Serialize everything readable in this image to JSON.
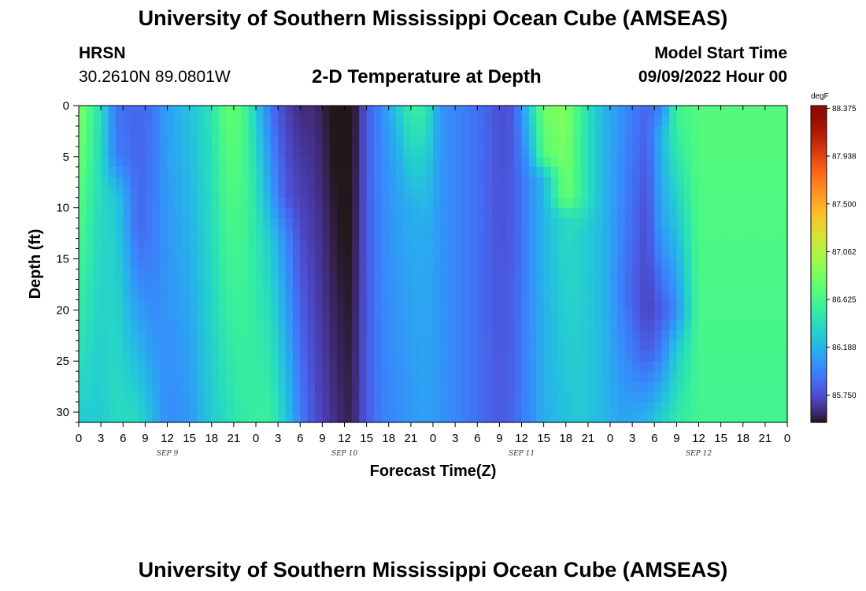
{
  "header": {
    "main_title": "University of Southern Mississippi Ocean Cube (AMSEAS)",
    "station_name": "HRSN",
    "station_coords": "30.2610N  89.0801W",
    "start_label": "Model Start Time",
    "start_value": "09/09/2022 Hour 00"
  },
  "footer": {
    "repeated_title": "University of Southern Mississippi Ocean Cube (AMSEAS)"
  },
  "chart_data": {
    "type": "heatmap",
    "title": "2-D Temperature at Depth",
    "xlabel": "Forecast Time(Z)",
    "ylabel": "Depth (ft)",
    "x_range_hours": [
      0,
      96
    ],
    "x_step_hours": 3,
    "y_range": [
      0,
      31
    ],
    "y_reversed": true,
    "y_ticks": [
      0,
      5,
      10,
      15,
      20,
      25,
      30
    ],
    "x_tick_labels": [
      "0",
      "3",
      "6",
      "9",
      "12",
      "15",
      "18",
      "21",
      "0",
      "3",
      "6",
      "9",
      "12",
      "15",
      "18",
      "21",
      "0",
      "3",
      "6",
      "9",
      "12",
      "15",
      "18",
      "21",
      "0",
      "3",
      "6",
      "9",
      "12",
      "15",
      "18",
      "21",
      "0"
    ],
    "day_labels": [
      "SEP 9",
      "SEP 10",
      "SEP 11",
      "SEP 12"
    ],
    "colorbar": {
      "unit": "degF",
      "min": 85.5,
      "max": 88.4,
      "tick_labels": [
        "88.375",
        "87.938",
        "87.500",
        "87.062",
        "86.625",
        "86.188",
        "85.750"
      ],
      "tick_values": [
        88.375,
        87.938,
        87.5,
        87.062,
        86.625,
        86.188,
        85.75
      ],
      "colormap": "turbo"
    },
    "depth_profiles": [
      {
        "hour": 0,
        "values": [
          [
            0,
            86.9
          ],
          [
            31,
            86.3
          ]
        ]
      },
      {
        "hour": 3,
        "values": [
          [
            0,
            86.4
          ],
          [
            31,
            86.3
          ]
        ]
      },
      {
        "hour": 5,
        "values": [
          [
            0,
            85.9
          ],
          [
            5,
            85.95
          ],
          [
            9,
            86.3
          ],
          [
            16,
            86.35
          ],
          [
            31,
            86.4
          ]
        ]
      },
      {
        "hour": 8,
        "values": [
          [
            0,
            85.85
          ],
          [
            12,
            85.85
          ],
          [
            17,
            86.0
          ],
          [
            31,
            86.4
          ]
        ]
      },
      {
        "hour": 10,
        "values": [
          [
            0,
            85.9
          ],
          [
            15,
            85.95
          ],
          [
            20,
            86.0
          ],
          [
            31,
            86.2
          ]
        ]
      },
      {
        "hour": 12,
        "values": [
          [
            0,
            86.1
          ],
          [
            31,
            86.0
          ]
        ]
      },
      {
        "hour": 15,
        "values": [
          [
            0,
            86.25
          ],
          [
            31,
            86.05
          ]
        ]
      },
      {
        "hour": 18,
        "values": [
          [
            0,
            86.45
          ],
          [
            31,
            86.3
          ]
        ]
      },
      {
        "hour": 20,
        "values": [
          [
            0,
            86.75
          ],
          [
            31,
            86.4
          ]
        ]
      },
      {
        "hour": 22,
        "values": [
          [
            0,
            86.7
          ],
          [
            31,
            86.5
          ]
        ]
      },
      {
        "hour": 24,
        "values": [
          [
            0,
            86.3
          ],
          [
            8,
            86.45
          ],
          [
            31,
            86.55
          ]
        ]
      },
      {
        "hour": 26,
        "values": [
          [
            0,
            85.9
          ],
          [
            9,
            86.1
          ],
          [
            13,
            86.3
          ],
          [
            31,
            86.55
          ]
        ]
      },
      {
        "hour": 28,
        "values": [
          [
            0,
            85.7
          ],
          [
            9,
            85.8
          ],
          [
            13,
            86.0
          ],
          [
            31,
            86.3
          ]
        ]
      },
      {
        "hour": 30,
        "values": [
          [
            0,
            85.6
          ],
          [
            31,
            85.95
          ]
        ]
      },
      {
        "hour": 32,
        "values": [
          [
            0,
            85.6
          ],
          [
            31,
            85.75
          ]
        ]
      },
      {
        "hour": 35,
        "values": [
          [
            0,
            85.45
          ],
          [
            31,
            85.6
          ]
        ]
      },
      {
        "hour": 37,
        "values": [
          [
            0,
            85.45
          ],
          [
            31,
            85.55
          ]
        ]
      },
      {
        "hour": 39,
        "values": [
          [
            0,
            85.8
          ],
          [
            31,
            85.8
          ]
        ]
      },
      {
        "hour": 41,
        "values": [
          [
            0,
            86.0
          ],
          [
            31,
            85.95
          ]
        ]
      },
      {
        "hour": 43,
        "values": [
          [
            0,
            86.25
          ],
          [
            6,
            86.1
          ],
          [
            31,
            86.0
          ]
        ]
      },
      {
        "hour": 45,
        "values": [
          [
            0,
            86.55
          ],
          [
            5,
            86.35
          ],
          [
            10,
            86.15
          ],
          [
            31,
            86.05
          ]
        ]
      },
      {
        "hour": 47,
        "values": [
          [
            0,
            86.5
          ],
          [
            6,
            86.3
          ],
          [
            12,
            86.15
          ],
          [
            31,
            86.1
          ]
        ]
      },
      {
        "hour": 49,
        "values": [
          [
            0,
            86.05
          ],
          [
            31,
            86.05
          ]
        ]
      },
      {
        "hour": 52,
        "values": [
          [
            0,
            85.95
          ],
          [
            31,
            85.95
          ]
        ]
      },
      {
        "hour": 55,
        "values": [
          [
            0,
            85.85
          ],
          [
            31,
            85.85
          ]
        ]
      },
      {
        "hour": 57,
        "values": [
          [
            0,
            85.75
          ],
          [
            31,
            85.8
          ]
        ]
      },
      {
        "hour": 59,
        "values": [
          [
            0,
            85.8
          ],
          [
            31,
            85.85
          ]
        ]
      },
      {
        "hour": 61,
        "values": [
          [
            0,
            86.3
          ],
          [
            5,
            86.1
          ],
          [
            7,
            86.0
          ],
          [
            31,
            86.0
          ]
        ]
      },
      {
        "hour": 63,
        "values": [
          [
            0,
            86.8
          ],
          [
            5,
            86.7
          ],
          [
            7,
            86.2
          ],
          [
            31,
            86.15
          ]
        ]
      },
      {
        "hour": 66,
        "values": [
          [
            0,
            86.9
          ],
          [
            9,
            86.8
          ],
          [
            11,
            86.4
          ],
          [
            31,
            86.25
          ]
        ]
      },
      {
        "hour": 68,
        "values": [
          [
            0,
            86.55
          ],
          [
            9,
            86.55
          ],
          [
            12,
            86.35
          ],
          [
            31,
            86.3
          ]
        ]
      },
      {
        "hour": 71,
        "values": [
          [
            0,
            86.2
          ],
          [
            31,
            86.2
          ]
        ]
      },
      {
        "hour": 74,
        "values": [
          [
            0,
            86.0
          ],
          [
            10,
            85.95
          ],
          [
            18,
            85.9
          ],
          [
            31,
            86.1
          ]
        ]
      },
      {
        "hour": 77,
        "values": [
          [
            0,
            85.85
          ],
          [
            10,
            85.75
          ],
          [
            20,
            85.7
          ],
          [
            24,
            85.8
          ],
          [
            31,
            86.2
          ]
        ]
      },
      {
        "hour": 79,
        "values": [
          [
            0,
            85.95
          ],
          [
            3,
            86.2
          ],
          [
            12,
            86.1
          ],
          [
            20,
            85.8
          ],
          [
            24,
            85.95
          ],
          [
            31,
            86.35
          ]
        ]
      },
      {
        "hour": 81,
        "values": [
          [
            0,
            86.6
          ],
          [
            4,
            86.5
          ],
          [
            10,
            86.3
          ],
          [
            20,
            86.0
          ],
          [
            24,
            86.3
          ],
          [
            31,
            86.5
          ]
        ]
      },
      {
        "hour": 84,
        "values": [
          [
            0,
            86.7
          ],
          [
            31,
            86.6
          ]
        ]
      },
      {
        "hour": 96,
        "values": [
          [
            0,
            86.7
          ],
          [
            31,
            86.6
          ]
        ]
      }
    ]
  }
}
